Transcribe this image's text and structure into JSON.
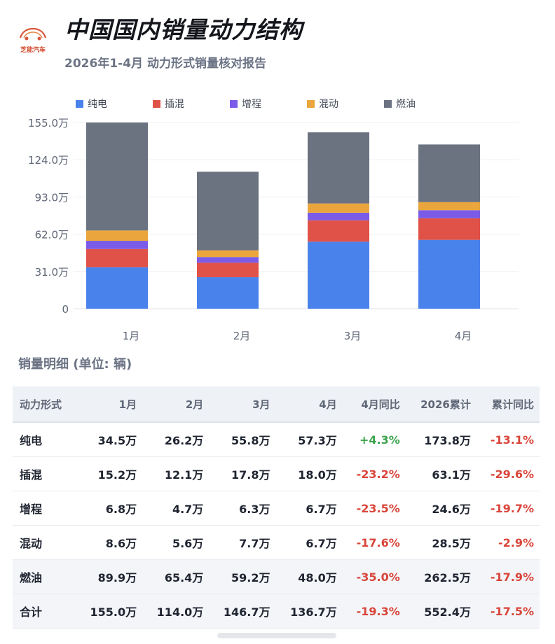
{
  "header": {
    "logo_text": "芝能汽车",
    "title": "中国国内销量动力结构",
    "subtitle": "2026年1-4月 动力形式销量核对报告"
  },
  "colors": {
    "bev": "#4a82ec",
    "phev": "#e05148",
    "erev": "#7a5ce8",
    "hev": "#eaa63c",
    "ice": "#6b7280",
    "positive": "#3aa24a",
    "negative": "#d9453a"
  },
  "chart_data": {
    "type": "bar",
    "stacked": true,
    "categories": [
      "1月",
      "2月",
      "3月",
      "4月"
    ],
    "y_ticks": [
      "0",
      "31.0万",
      "62.0万",
      "93.0万",
      "124.0万",
      "155.0万"
    ],
    "ylim": [
      0,
      155
    ],
    "legend_position": "top-left",
    "grid": true,
    "series": [
      {
        "name": "纯电",
        "color": "#4a82ec",
        "values": [
          34.5,
          26.2,
          55.8,
          57.3
        ]
      },
      {
        "name": "插混",
        "color": "#e05148",
        "values": [
          15.2,
          12.1,
          17.8,
          18.0
        ]
      },
      {
        "name": "增程",
        "color": "#7a5ce8",
        "values": [
          6.8,
          4.7,
          6.3,
          6.7
        ]
      },
      {
        "name": "混动",
        "color": "#eaa63c",
        "values": [
          8.6,
          5.6,
          7.7,
          6.7
        ]
      },
      {
        "name": "燃油",
        "color": "#6b7280",
        "values": [
          89.9,
          65.4,
          59.2,
          48.0
        ]
      }
    ]
  },
  "table": {
    "title": "销量明细 (单位: 辆)",
    "headers": [
      "动力形式",
      "1月",
      "2月",
      "3月",
      "4月",
      "4月同比",
      "2026累计",
      "累计同比"
    ],
    "rows": [
      {
        "cells": [
          "纯电",
          "34.5万",
          "26.2万",
          "55.8万",
          "57.3万",
          "+4.3%",
          "173.8万",
          "-13.1%"
        ],
        "yoy_sign": "pos",
        "cum_sign": "neg"
      },
      {
        "cells": [
          "插混",
          "15.2万",
          "12.1万",
          "17.8万",
          "18.0万",
          "-23.2%",
          "63.1万",
          "-29.6%"
        ],
        "yoy_sign": "neg",
        "cum_sign": "neg"
      },
      {
        "cells": [
          "增程",
          "6.8万",
          "4.7万",
          "6.3万",
          "6.7万",
          "-23.5%",
          "24.6万",
          "-19.7%"
        ],
        "yoy_sign": "neg",
        "cum_sign": "neg"
      },
      {
        "cells": [
          "混动",
          "8.6万",
          "5.6万",
          "7.7万",
          "6.7万",
          "-17.6%",
          "28.5万",
          "-2.9%"
        ],
        "yoy_sign": "neg",
        "cum_sign": "neg"
      },
      {
        "cells": [
          "燃油",
          "89.9万",
          "65.4万",
          "59.2万",
          "48.0万",
          "-35.0%",
          "262.5万",
          "-17.9%"
        ],
        "yoy_sign": "neg",
        "cum_sign": "neg"
      },
      {
        "cells": [
          "合计",
          "155.0万",
          "114.0万",
          "146.7万",
          "136.7万",
          "-19.3%",
          "552.4万",
          "-17.5%"
        ],
        "yoy_sign": "neg",
        "cum_sign": "neg"
      }
    ]
  }
}
